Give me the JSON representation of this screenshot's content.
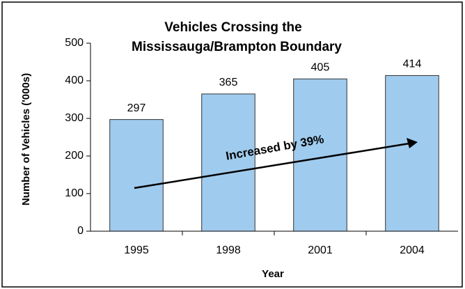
{
  "chart_data": {
    "type": "bar",
    "title": [
      "Vehicles Crossing the",
      "Mississauga/Brampton Boundary"
    ],
    "y_label": "Number of Vehicles ('000s)",
    "x_label": "Year",
    "annotation": "Increased by 39%",
    "categories": [
      "1995",
      "1998",
      "2001",
      "2004"
    ],
    "values": [
      297,
      365,
      405,
      414
    ],
    "color": "#9fcbee",
    "ylim": [
      0,
      500
    ],
    "yticks": [
      0,
      100,
      200,
      300,
      400,
      500
    ],
    "grid": false
  }
}
